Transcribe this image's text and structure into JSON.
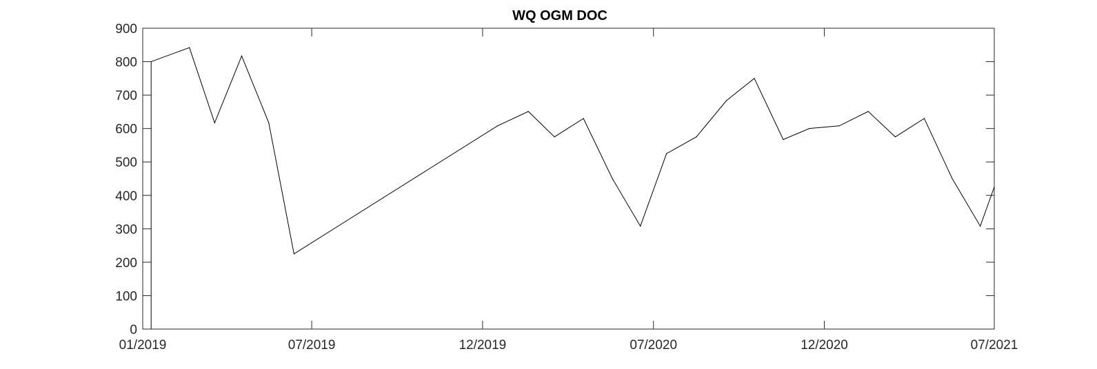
{
  "chart_data": {
    "type": "line",
    "title": "WQ OGM DOC",
    "xlabel": "",
    "ylabel": "",
    "x_axis_type": "date",
    "xlim": [
      "2019-01-01",
      "2021-07-01"
    ],
    "ylim": [
      0,
      900
    ],
    "yticks": [
      0,
      100,
      200,
      300,
      400,
      500,
      600,
      700,
      800,
      900
    ],
    "xticks": [
      {
        "date": "2019-01-01",
        "label": "01/2019"
      },
      {
        "date": "2019-07-01",
        "label": "07/2019"
      },
      {
        "date": "2019-12-31",
        "label": "12/2019"
      },
      {
        "date": "2020-07-01",
        "label": "07/2020"
      },
      {
        "date": "2020-12-31",
        "label": "12/2020"
      },
      {
        "date": "2021-07-01",
        "label": "07/2021"
      }
    ],
    "grid": false,
    "box": true,
    "line_color": "#000000",
    "series": [
      {
        "points": [
          {
            "x": "2019-01-10",
            "y": 0
          },
          {
            "x": "2019-01-10",
            "y": 800
          },
          {
            "x": "2019-02-20",
            "y": 842
          },
          {
            "x": "2019-03-19",
            "y": 617
          },
          {
            "x": "2019-04-17",
            "y": 817
          },
          {
            "x": "2019-05-16",
            "y": 617
          },
          {
            "x": "2019-06-12",
            "y": 225
          },
          {
            "x": "2020-01-16",
            "y": 608
          },
          {
            "x": "2020-02-18",
            "y": 651
          },
          {
            "x": "2020-03-17",
            "y": 575
          },
          {
            "x": "2020-04-17",
            "y": 630
          },
          {
            "x": "2020-05-18",
            "y": 450
          },
          {
            "x": "2020-06-17",
            "y": 308
          },
          {
            "x": "2020-07-15",
            "y": 525
          },
          {
            "x": "2020-08-16",
            "y": 575
          },
          {
            "x": "2020-09-17",
            "y": 683
          },
          {
            "x": "2020-10-17",
            "y": 750
          },
          {
            "x": "2020-11-17",
            "y": 567
          },
          {
            "x": "2020-12-15",
            "y": 600
          },
          {
            "x": "2021-01-16",
            "y": 608
          },
          {
            "x": "2021-02-16",
            "y": 651
          },
          {
            "x": "2021-03-17",
            "y": 575
          },
          {
            "x": "2021-04-17",
            "y": 630
          },
          {
            "x": "2021-05-17",
            "y": 450
          },
          {
            "x": "2021-06-16",
            "y": 308
          },
          {
            "x": "2021-07-01",
            "y": 425
          }
        ]
      }
    ]
  }
}
